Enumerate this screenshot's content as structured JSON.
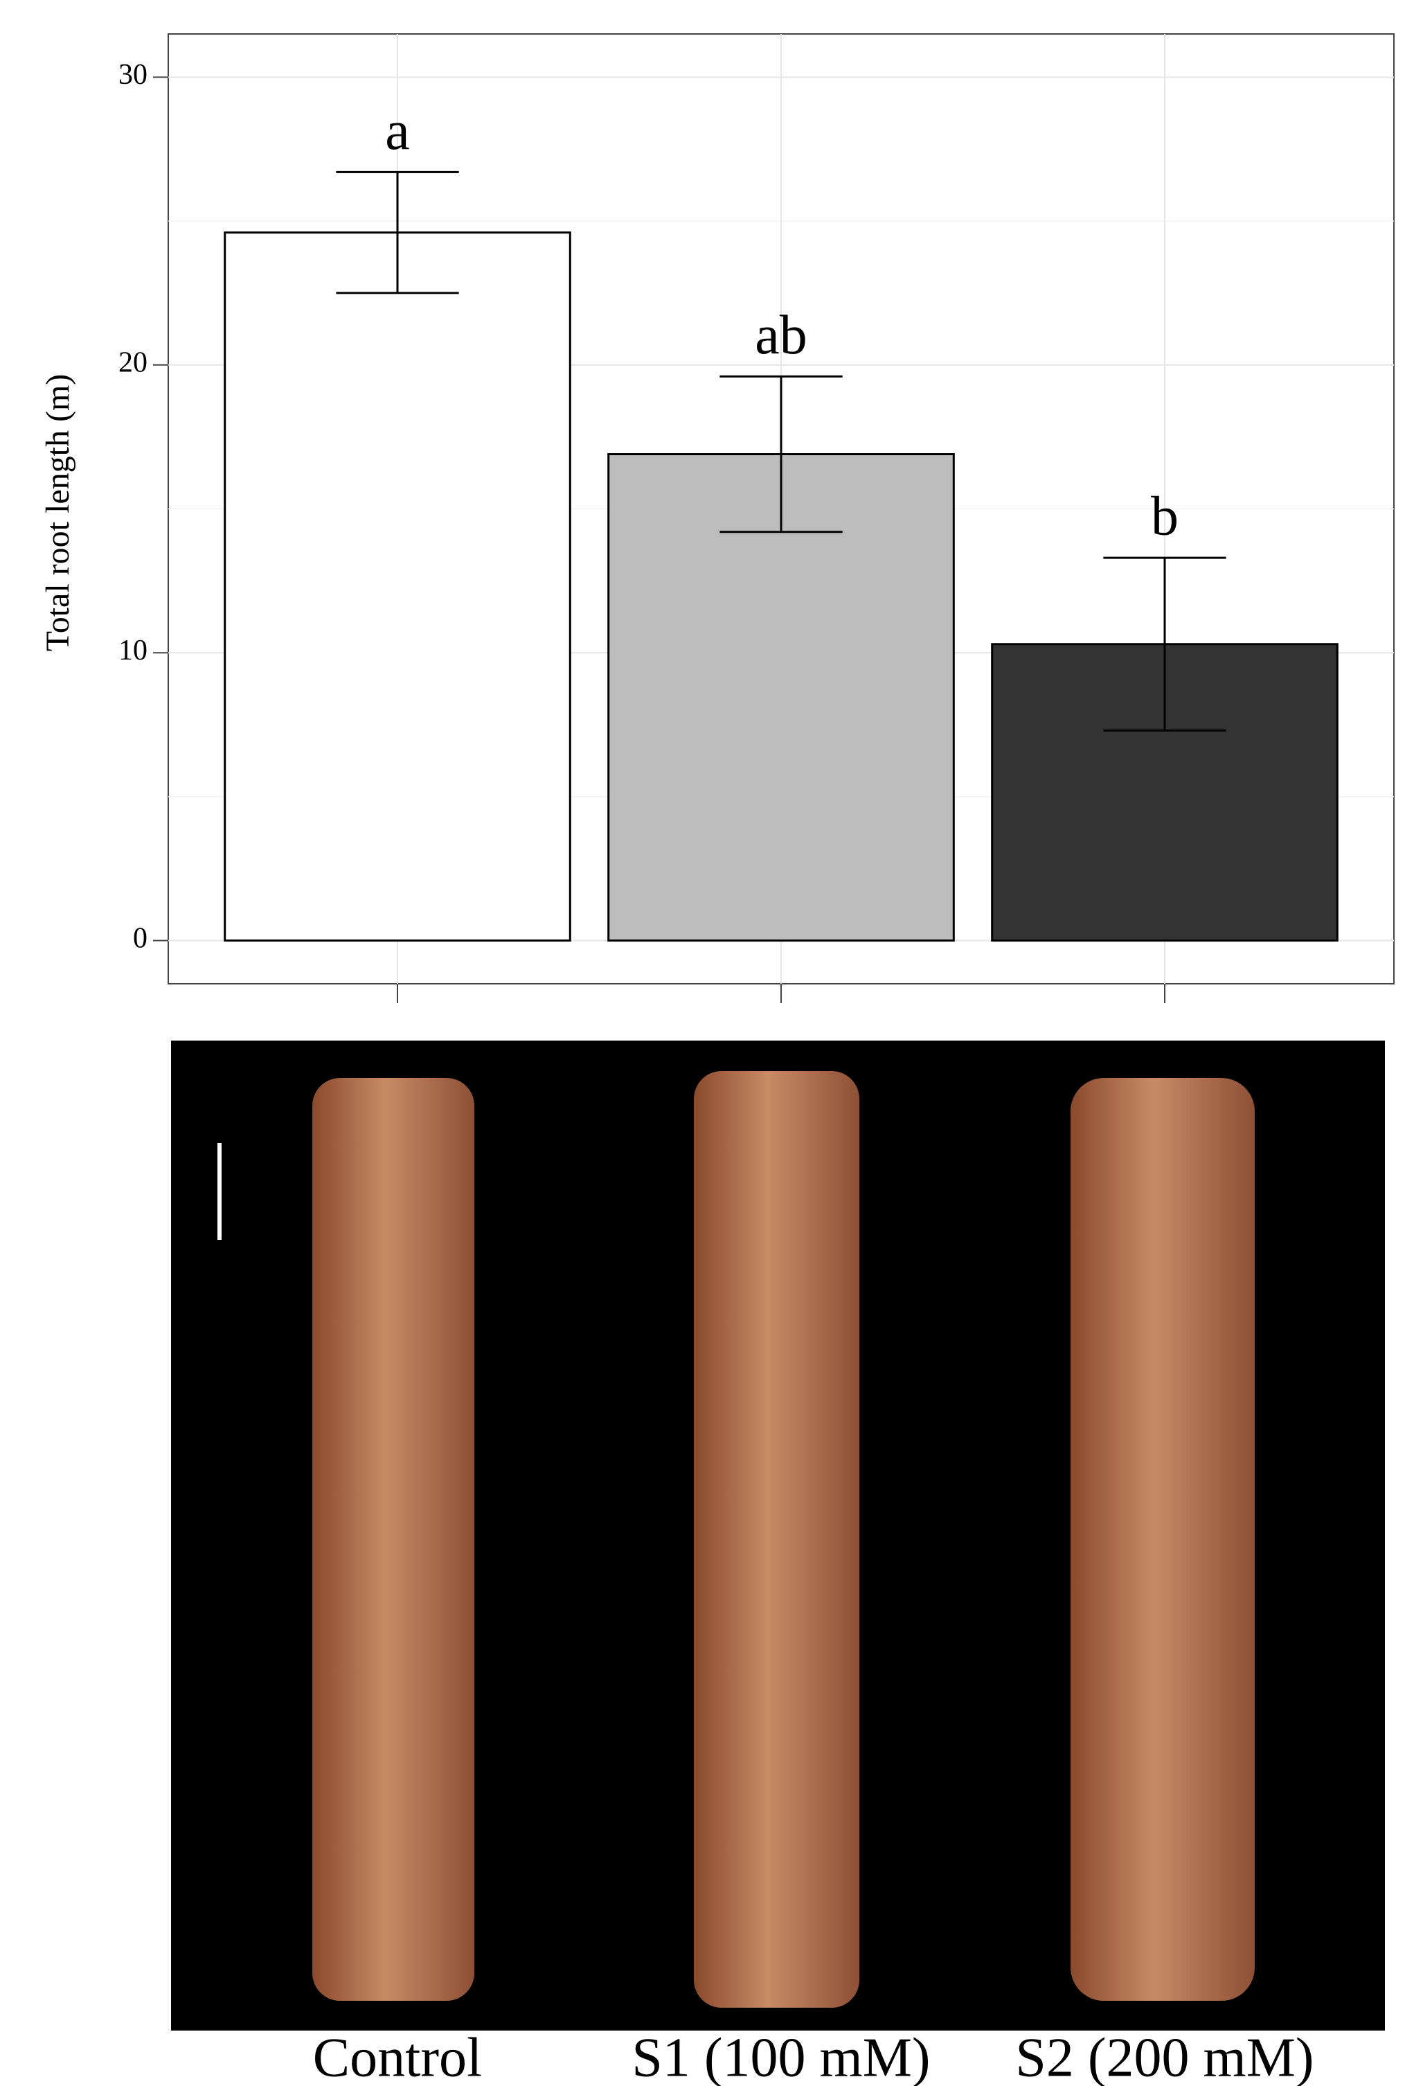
{
  "chart_data": {
    "type": "bar",
    "y_label": "Total root length (m)",
    "categories": [
      "Control",
      "S1 (100 mM)",
      "S2 (200 mM)"
    ],
    "values": [
      24.6,
      16.9,
      10.3
    ],
    "errors": [
      2.1,
      2.7,
      3.0
    ],
    "annotations": [
      "a",
      "ab",
      "b"
    ],
    "colors": [
      "#ffffff",
      "#bdbdbd",
      "#333333"
    ],
    "ylim": [
      -1.5,
      31.5
    ],
    "yticks": [
      0,
      10,
      20,
      30
    ],
    "grid": true
  }
}
